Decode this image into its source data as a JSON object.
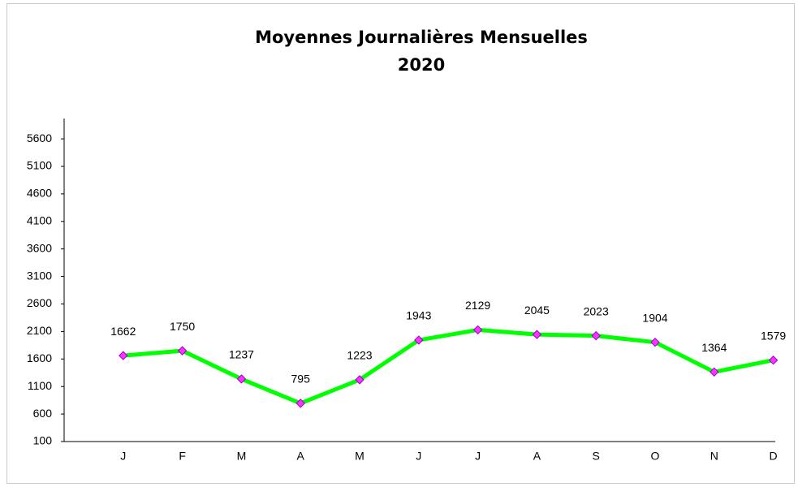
{
  "chart_data": {
    "type": "line",
    "title": "Moyennes Journalières Mensuelles",
    "subtitle": "2020",
    "categories": [
      "J",
      "F",
      "M",
      "A",
      "M",
      "J",
      "J",
      "A",
      "S",
      "O",
      "N",
      "D"
    ],
    "series": [
      {
        "name": "2020",
        "color": "#00ff00",
        "marker_color": "#ff33ff",
        "values": [
          1662,
          1750,
          1237,
          795,
          1223,
          1943,
          2129,
          2045,
          2023,
          1904,
          1364,
          1579
        ]
      }
    ],
    "ylim": [
      100,
      5970
    ],
    "yticks": [
      100,
      600,
      1100,
      1600,
      2100,
      2600,
      3100,
      3600,
      4100,
      4600,
      5100,
      5600
    ],
    "grid": false,
    "legend": false
  }
}
